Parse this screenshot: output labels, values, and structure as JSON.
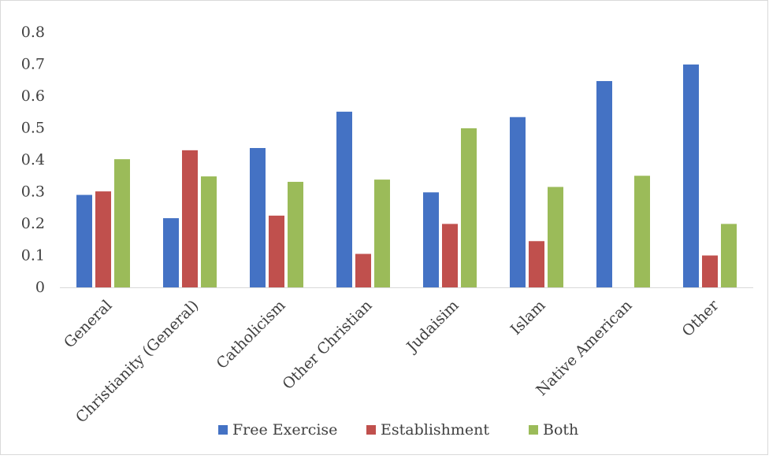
{
  "chart_data": {
    "type": "bar",
    "title": "",
    "xlabel": "",
    "ylabel": "",
    "categories": [
      "General",
      "Christianity (General)",
      "Catholicism",
      "Other Christian",
      "Judaisim",
      "Islam",
      "Native American",
      "Other"
    ],
    "series": [
      {
        "name": "Free Exercise",
        "color": "#4472c4",
        "values": [
          0.29,
          0.217,
          0.437,
          0.551,
          0.298,
          0.534,
          0.647,
          0.699
        ]
      },
      {
        "name": "Establishment",
        "color": "#c0504d",
        "values": [
          0.301,
          0.43,
          0.225,
          0.105,
          0.199,
          0.145,
          0,
          0.1
        ]
      },
      {
        "name": "Both",
        "color": "#9bbb59",
        "values": [
          0.402,
          0.348,
          0.331,
          0.338,
          0.499,
          0.315,
          0.35,
          0.199
        ]
      }
    ],
    "y_ticks": [
      "0",
      "0.1",
      "0.2",
      "0.3",
      "0.4",
      "0.5",
      "0.6",
      "0.7",
      "0.8"
    ],
    "ylim": [
      0,
      0.8
    ],
    "grid": false,
    "legend_position": "bottom"
  }
}
